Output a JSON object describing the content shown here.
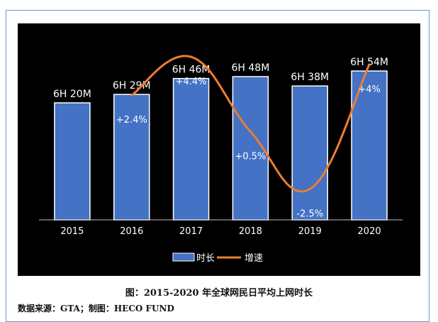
{
  "chart_data": {
    "type": "bar",
    "categories": [
      "2015",
      "2016",
      "2017",
      "2018",
      "2019",
      "2020"
    ],
    "series": [
      {
        "name": "时长",
        "type": "bar",
        "values": [
          380,
          389,
          406,
          408,
          398,
          414
        ],
        "labels": [
          "6H 20M",
          "6H 29M",
          "6H 46M",
          "6H 48M",
          "6H 38M",
          "6H 54M"
        ]
      },
      {
        "name": "增速",
        "type": "line",
        "values": [
          null,
          2.4,
          4.4,
          0.5,
          -2.5,
          4
        ],
        "labels": [
          "",
          "+2.4%",
          "+4.4%",
          "+0.5%",
          "-2.5%",
          "+4%"
        ]
      }
    ],
    "bar_color": "#4472c4",
    "line_color": "#ed7d31",
    "background": "#000000",
    "legend_position": "bottom",
    "grid": false
  },
  "caption": "图：2015-2020 年全球网民日平均上网时长",
  "source": "数据来源：GTA；制图：HECO FUND"
}
